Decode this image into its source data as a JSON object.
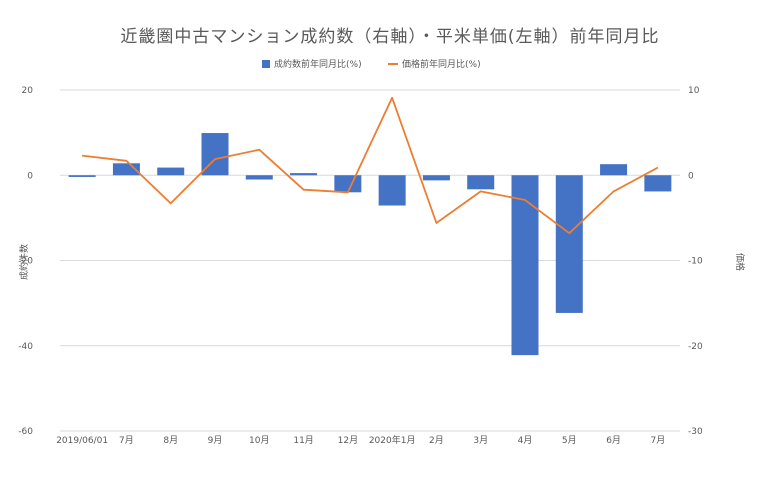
{
  "chart_data": {
    "type": "bar+line",
    "title": "近畿圏中古マンション成約数（右軸）・平米単価(左軸）前年同月比",
    "categories": [
      "2019/06/01",
      "7月",
      "8月",
      "9月",
      "10月",
      "11月",
      "12月",
      "2020年1月",
      "2月",
      "3月",
      "4月",
      "5月",
      "6月",
      "7月"
    ],
    "left_axis": {
      "label": "成約件数",
      "ticks": [
        20,
        0,
        -20,
        -40,
        -60
      ],
      "range": [
        -60,
        20
      ]
    },
    "right_axis": {
      "label": "価格",
      "ticks": [
        10,
        0,
        -10,
        -20,
        -30
      ],
      "range": [
        -30,
        10
      ]
    },
    "series": [
      {
        "name": "成約数前年同月比(%)",
        "type": "bar",
        "axis": "left",
        "color": "#4472C4",
        "values": [
          -0.4,
          2.8,
          1.8,
          9.9,
          -1.0,
          0.5,
          -4.0,
          -7.1,
          -1.2,
          -3.3,
          -42.2,
          -32.3,
          2.6,
          -3.8
        ]
      },
      {
        "name": "価格前年同月比(%)",
        "type": "line",
        "axis": "right",
        "color": "#ED7D31",
        "values": [
          2.3,
          1.7,
          -3.3,
          1.9,
          3.0,
          -1.7,
          -2.0,
          9.1,
          -5.6,
          -1.9,
          -2.9,
          -6.8,
          -1.9,
          0.9
        ]
      }
    ],
    "legend": {
      "position": "top"
    }
  }
}
